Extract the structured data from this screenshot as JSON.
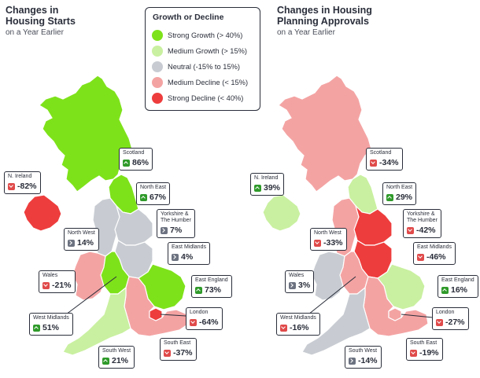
{
  "left": {
    "title_line1": "Changes in",
    "title_line2": "Housing Starts",
    "subtitle": "on a Year Earlier"
  },
  "right": {
    "title_line1": "Changes in Housing",
    "title_line2": "Planning Approvals",
    "subtitle": "on a Year Earlier"
  },
  "legend": {
    "title": "Growth or Decline",
    "items": [
      {
        "label": "Strong Growth (> 40%)",
        "color": "#7ee21a"
      },
      {
        "label": "Medium Growth (> 15%)",
        "color": "#c9f0a0"
      },
      {
        "label": "Neutral (-15% to 15%)",
        "color": "#c8ccd2"
      },
      {
        "label": "Medium Decline (< 15%)",
        "color": "#f4a3a3"
      },
      {
        "label": "Strong Decline (< 40%)",
        "color": "#ee3d3d"
      }
    ]
  },
  "colors": {
    "strong_growth": "#7ee21a",
    "medium_growth": "#c9f0a0",
    "neutral": "#c8ccd2",
    "medium_decline": "#f4a3a3",
    "strong_decline": "#ee3d3d",
    "chip_up": "#2f9a2a",
    "chip_down": "#e04a4a",
    "chip_neutral": "#6c7280"
  },
  "starts": {
    "scotland": {
      "name": "Scotland",
      "value": "86%",
      "dir": "up"
    },
    "n_ireland": {
      "name": "N. Ireland",
      "value": "-82%",
      "dir": "down"
    },
    "north_east": {
      "name": "North East",
      "value": "67%",
      "dir": "up"
    },
    "yorkshire": {
      "name": "Yorkshire &\nThe Humber",
      "value": "7%",
      "dir": "side"
    },
    "north_west": {
      "name": "North West",
      "value": "14%",
      "dir": "side"
    },
    "east_midlands": {
      "name": "East Midlands",
      "value": "4%",
      "dir": "side"
    },
    "wales": {
      "name": "Wales",
      "value": "-21%",
      "dir": "down"
    },
    "east_england": {
      "name": "East England",
      "value": "73%",
      "dir": "up"
    },
    "west_midlands": {
      "name": "West Midlands",
      "value": "51%",
      "dir": "up"
    },
    "london": {
      "name": "London",
      "value": "-64%",
      "dir": "down"
    },
    "south_west": {
      "name": "South West",
      "value": "21%",
      "dir": "up"
    },
    "south_east": {
      "name": "South East",
      "value": "-37%",
      "dir": "down"
    }
  },
  "approvals": {
    "scotland": {
      "name": "Scotland",
      "value": "-34%",
      "dir": "down"
    },
    "n_ireland": {
      "name": "N. Ireland",
      "value": "39%",
      "dir": "up"
    },
    "north_east": {
      "name": "North East",
      "value": "29%",
      "dir": "up"
    },
    "yorkshire": {
      "name": "Yorkshire &\nThe Humber",
      "value": "-42%",
      "dir": "down"
    },
    "north_west": {
      "name": "North West",
      "value": "-33%",
      "dir": "down"
    },
    "east_midlands": {
      "name": "East Midlands",
      "value": "-46%",
      "dir": "down"
    },
    "wales": {
      "name": "Wales",
      "value": "3%",
      "dir": "side"
    },
    "east_england": {
      "name": "East England",
      "value": "16%",
      "dir": "up"
    },
    "west_midlands": {
      "name": "West Midlands",
      "value": "-16%",
      "dir": "down"
    },
    "london": {
      "name": "London",
      "value": "-27%",
      "dir": "down"
    },
    "south_west": {
      "name": "South West",
      "value": "-14%",
      "dir": "side"
    },
    "south_east": {
      "name": "South East",
      "value": "-19%",
      "dir": "down"
    }
  }
}
